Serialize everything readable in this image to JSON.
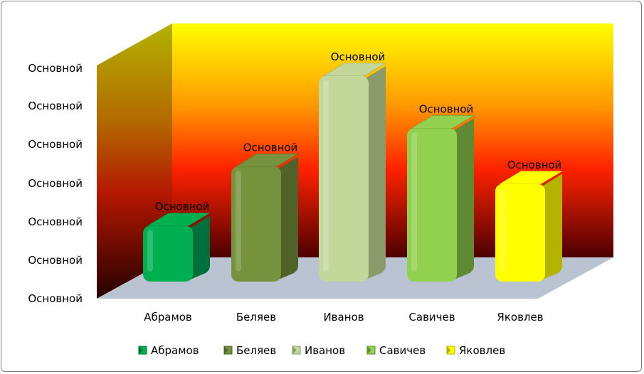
{
  "chart_data": {
    "type": "bar",
    "categories": [
      "Абрамов",
      "Беляев",
      "Иванов",
      "Савичев",
      "Яковлев"
    ],
    "values": [
      1.6,
      3.3,
      5.9,
      4.4,
      2.8
    ],
    "data_labels": [
      "Основной",
      "Основной",
      "Основной",
      "Основной",
      "Основной"
    ],
    "ytick_labels": [
      "Основной",
      "Основной",
      "Основной",
      "Основной",
      "Основной",
      "Основной",
      "Основной"
    ],
    "ylim": [
      0,
      6
    ],
    "bar_colors": [
      "#00b050",
      "#76923c",
      "#c4d79b",
      "#92d050",
      "#ffff00"
    ],
    "side_colors": [
      "#00703a",
      "#4f6228",
      "#8a9a6a",
      "#5f8a32",
      "#b3b300"
    ],
    "legend": {
      "position": "bottom",
      "items": [
        "Абрамов",
        "Беляев",
        "Иванов",
        "Савичев",
        "Яковлев"
      ]
    },
    "wall_gradient": [
      "#ffff00",
      "#ff9900",
      "#ff2200",
      "#4d0000"
    ],
    "floor_color": "#b9c3d1",
    "three_d": true
  }
}
